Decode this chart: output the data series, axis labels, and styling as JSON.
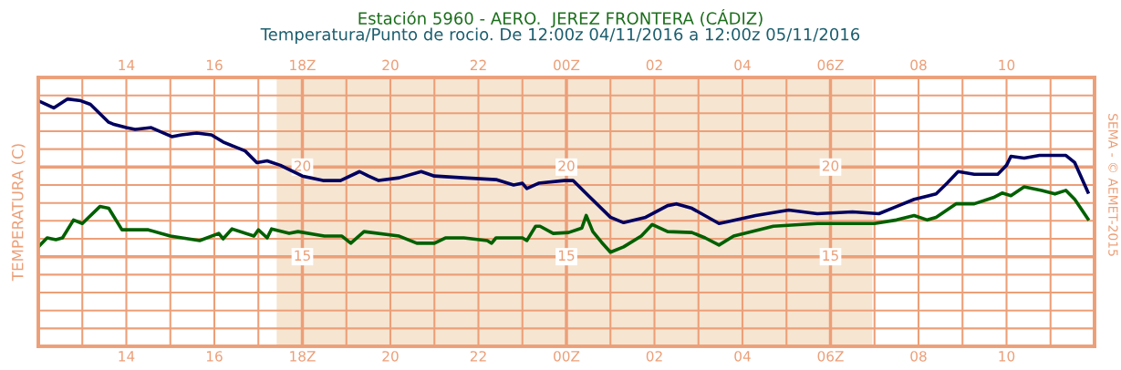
{
  "chart_data": {
    "type": "line",
    "title": "Estación 5960 - AERO.  JEREZ FRONTERA (CÁDIZ)",
    "subtitle": "Temperatura/Punto de rocio. De 12:00z 04/11/2016 a 12:00z 05/11/2016",
    "ylabel": "TEMPERATURA (C)",
    "annotations": [
      "SEMA - © AEMET-2015",
      {
        "text": "20",
        "x": "2016-11-05T00:00",
        "y": 20
      },
      {
        "text": "15",
        "x": "2016-11-05T00:00",
        "y": 15
      },
      {
        "text": "20",
        "x": "2016-11-05T06:00",
        "y": 20
      },
      {
        "text": "15",
        "x": "2016-11-05T06:00",
        "y": 15
      }
    ],
    "xlim": [
      "2016-11-04T12:00",
      "2016-11-05T12:00"
    ],
    "ylim": [
      10,
      25
    ],
    "xticks": [
      {
        "value": "2016-11-04T14:00",
        "label": "14"
      },
      {
        "value": "2016-11-04T16:00",
        "label": "16"
      },
      {
        "value": "2016-11-04T18:00",
        "label": "18Z"
      },
      {
        "value": "2016-11-04T20:00",
        "label": "20"
      },
      {
        "value": "2016-11-04T22:00",
        "label": "22"
      },
      {
        "value": "2016-11-05T00:00",
        "label": "00Z"
      },
      {
        "value": "2016-11-05T02:00",
        "label": "02"
      },
      {
        "value": "2016-11-05T04:00",
        "label": "04"
      },
      {
        "value": "2016-11-05T06:00",
        "label": "06Z"
      },
      {
        "value": "2016-11-05T08:00",
        "label": "08"
      },
      {
        "value": "2016-11-05T10:00",
        "label": "10"
      }
    ],
    "x2lim": [
      "2016-11-04T12:00",
      "2016-11-05T12:00"
    ],
    "x2ticks": [
      {
        "value": "2016-11-04T14:00",
        "label": "14"
      },
      {
        "value": "2016-11-04T16:00",
        "label": "16"
      },
      {
        "value": "2016-11-04T18:00",
        "label": "18Z"
      },
      {
        "value": "2016-11-04T20:00",
        "label": "20"
      },
      {
        "value": "2016-11-04T22:00",
        "label": "22"
      },
      {
        "value": "2016-11-05T00:00",
        "label": "00Z"
      },
      {
        "value": "2016-11-05T02:00",
        "label": "02"
      },
      {
        "value": "2016-11-05T04:00",
        "label": "04"
      },
      {
        "value": "2016-11-05T06:00",
        "label": "06Z"
      },
      {
        "value": "2016-11-05T08:00",
        "label": "08"
      },
      {
        "value": "2016-11-05T10:00",
        "label": "10"
      }
    ],
    "yticks": [
      15,
      20
    ],
    "grid": true,
    "line_style": "solid",
    "marker": "none",
    "bands": [
      {
        "axis": "x",
        "from": "2016-11-04T17:25",
        "to": "2016-11-05T06:57",
        "color": "#f5e5d1"
      }
    ],
    "series": [
      {
        "color": "#000060",
        "x": [
          "2016-11-04T12:00",
          "2016-11-04T12:21",
          "2016-11-04T12:40",
          "2016-11-04T12:58",
          "2016-11-04T13:11",
          "2016-11-04T13:36",
          "2016-11-04T13:42",
          "2016-11-04T14:00",
          "2016-11-04T14:12",
          "2016-11-04T14:34",
          "2016-11-04T15:02",
          "2016-11-04T15:15",
          "2016-11-04T15:36",
          "2016-11-04T15:56",
          "2016-11-04T16:12",
          "2016-11-04T16:42",
          "2016-11-04T16:58",
          "2016-11-04T17:12",
          "2016-11-04T17:30",
          "2016-11-04T18:00",
          "2016-11-04T18:28",
          "2016-11-04T18:52",
          "2016-11-04T19:18",
          "2016-11-04T19:30",
          "2016-11-04T19:44",
          "2016-11-04T20:12",
          "2016-11-04T20:42",
          "2016-11-04T21:00",
          "2016-11-04T21:40",
          "2016-11-04T22:24",
          "2016-11-04T22:48",
          "2016-11-04T23:00",
          "2016-11-04T23:06",
          "2016-11-04T23:22",
          "2016-11-04T23:57",
          "2016-11-05T00:09",
          "2016-11-05T00:30",
          "2016-11-05T01:00",
          "2016-11-05T01:18",
          "2016-11-05T01:48",
          "2016-11-05T02:18",
          "2016-11-05T02:30",
          "2016-11-05T02:51",
          "2016-11-05T03:28",
          "2016-11-05T03:40",
          "2016-11-05T04:18",
          "2016-11-05T05:03",
          "2016-11-05T05:42",
          "2016-11-05T06:30",
          "2016-11-05T07:06",
          "2016-11-05T07:30",
          "2016-11-05T07:54",
          "2016-11-05T08:24",
          "2016-11-05T08:39",
          "2016-11-05T08:54",
          "2016-11-05T09:16",
          "2016-11-05T09:48",
          "2016-11-05T10:00",
          "2016-11-05T10:06",
          "2016-11-05T10:24",
          "2016-11-05T10:45",
          "2016-11-05T11:21",
          "2016-11-05T11:33",
          "2016-11-05T11:51"
        ],
        "values": [
          23.7,
          23.3,
          23.8,
          23.7,
          23.5,
          22.5,
          22.4,
          22.2,
          22.1,
          22.2,
          21.7,
          21.8,
          21.9,
          21.8,
          21.4,
          20.9,
          20.25,
          20.35,
          20.1,
          19.5,
          19.25,
          19.25,
          19.75,
          19.5,
          19.25,
          19.4,
          19.75,
          19.5,
          19.4,
          19.3,
          19.0,
          19.1,
          18.8,
          19.1,
          19.25,
          19.25,
          18.4,
          17.2,
          16.9,
          17.2,
          17.85,
          17.95,
          17.7,
          16.85,
          16.95,
          17.3,
          17.6,
          17.4,
          17.5,
          17.4,
          17.8,
          18.2,
          18.5,
          19.1,
          19.75,
          19.6,
          19.6,
          20.1,
          20.6,
          20.5,
          20.65,
          20.65,
          20.25,
          18.6
        ]
      },
      {
        "color": "#006000",
        "x": [
          "2016-11-04T12:00",
          "2016-11-04T12:12",
          "2016-11-04T12:24",
          "2016-11-04T12:33",
          "2016-11-04T12:48",
          "2016-11-04T13:00",
          "2016-11-04T13:24",
          "2016-11-04T13:36",
          "2016-11-04T13:54",
          "2016-11-04T14:30",
          "2016-11-04T15:00",
          "2016-11-04T15:40",
          "2016-11-04T16:06",
          "2016-11-04T16:12",
          "2016-11-04T16:24",
          "2016-11-04T16:54",
          "2016-11-04T17:00",
          "2016-11-04T17:12",
          "2016-11-04T17:18",
          "2016-11-04T17:42",
          "2016-11-04T17:54",
          "2016-11-04T18:30",
          "2016-11-04T18:54",
          "2016-11-04T19:06",
          "2016-11-04T19:24",
          "2016-11-04T20:12",
          "2016-11-04T20:36",
          "2016-11-04T21:00",
          "2016-11-04T21:15",
          "2016-11-04T21:40",
          "2016-11-04T22:12",
          "2016-11-04T22:18",
          "2016-11-04T22:24",
          "2016-11-04T23:00",
          "2016-11-04T23:06",
          "2016-11-04T23:18",
          "2016-11-04T23:24",
          "2016-11-04T23:42",
          "2016-11-05T00:03",
          "2016-11-05T00:21",
          "2016-11-05T00:27",
          "2016-11-05T00:36",
          "2016-11-05T00:48",
          "2016-11-05T01:00",
          "2016-11-05T01:18",
          "2016-11-05T01:42",
          "2016-11-05T01:57",
          "2016-11-05T02:18",
          "2016-11-05T02:51",
          "2016-11-05T03:09",
          "2016-11-05T03:28",
          "2016-11-05T03:48",
          "2016-11-05T04:42",
          "2016-11-05T05:42",
          "2016-11-05T07:00",
          "2016-11-05T07:30",
          "2016-11-05T07:54",
          "2016-11-05T08:12",
          "2016-11-05T08:24",
          "2016-11-05T08:51",
          "2016-11-05T09:16",
          "2016-11-05T09:42",
          "2016-11-05T09:54",
          "2016-11-05T10:06",
          "2016-11-05T10:24",
          "2016-11-05T10:48",
          "2016-11-05T11:06",
          "2016-11-05T11:21",
          "2016-11-05T11:33",
          "2016-11-05T11:51"
        ],
        "values": [
          15.55,
          16.05,
          15.95,
          16.05,
          17.05,
          16.85,
          17.8,
          17.7,
          16.5,
          16.5,
          16.15,
          15.9,
          16.3,
          16.0,
          16.55,
          16.15,
          16.5,
          16.05,
          16.55,
          16.3,
          16.4,
          16.15,
          16.15,
          15.75,
          16.4,
          16.15,
          15.75,
          15.75,
          16.05,
          16.05,
          15.9,
          15.75,
          16.05,
          16.05,
          15.9,
          16.7,
          16.7,
          16.3,
          16.35,
          16.6,
          17.3,
          16.4,
          15.8,
          15.25,
          15.55,
          16.15,
          16.8,
          16.4,
          16.35,
          16.05,
          15.65,
          16.15,
          16.7,
          16.85,
          16.85,
          17.05,
          17.3,
          17.05,
          17.2,
          17.95,
          17.95,
          18.3,
          18.55,
          18.4,
          18.9,
          18.7,
          18.5,
          18.7,
          18.2,
          17.1
        ]
      }
    ]
  }
}
